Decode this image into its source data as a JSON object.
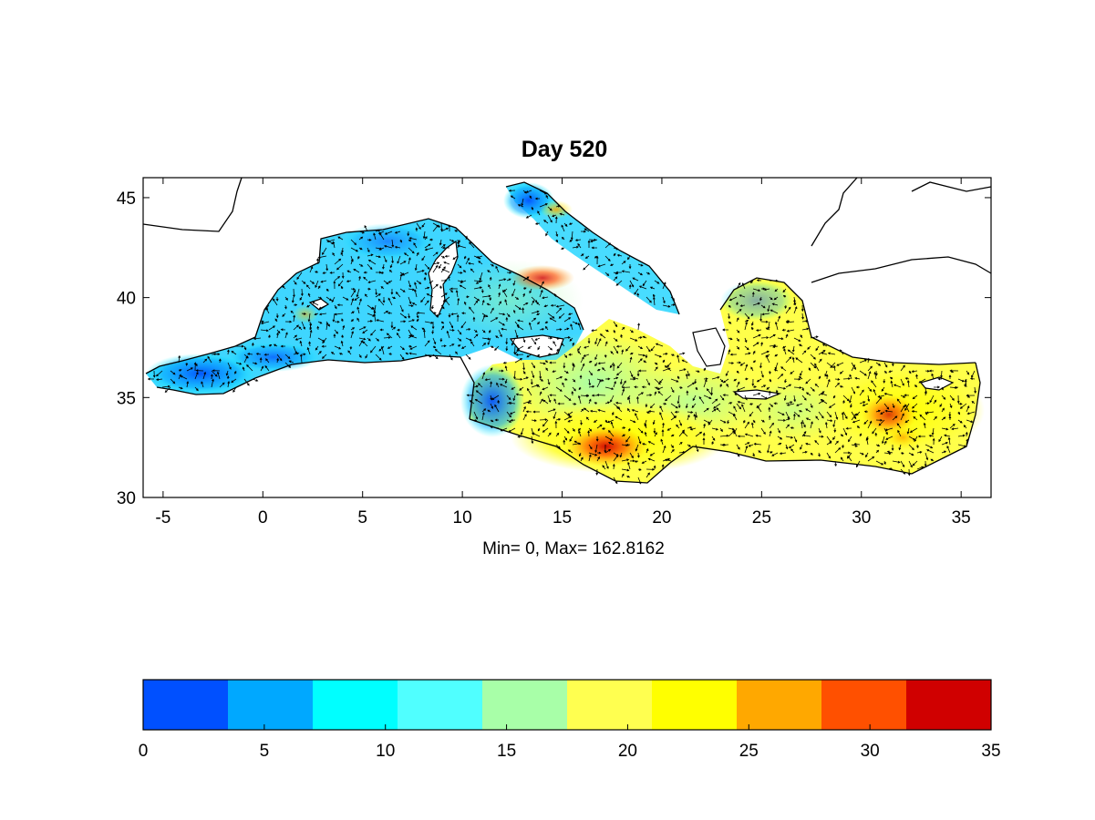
{
  "title": "Day  520",
  "stats_label": "Min= 0,  Max= 162.8162",
  "map": {
    "x_ticks": [
      -5,
      0,
      5,
      10,
      15,
      20,
      25,
      30,
      35
    ],
    "y_ticks": [
      30,
      35,
      40,
      45
    ],
    "x_range": [
      -6,
      36.5
    ],
    "y_range": [
      30,
      46
    ]
  },
  "colorbar": {
    "ticks": [
      0,
      5,
      10,
      15,
      20,
      25,
      30,
      35
    ],
    "range": [
      0,
      35
    ],
    "colors": [
      "#0050ff",
      "#00a8ff",
      "#00ffff",
      "#50ffff",
      "#a8ffa8",
      "#ffff50",
      "#ffff00",
      "#ffa800",
      "#ff5000",
      "#d00000"
    ]
  },
  "chart_data": {
    "type": "heatmap",
    "title": "Day  520",
    "xlabel": "",
    "ylabel": "",
    "xlim": [
      -6,
      36.5
    ],
    "ylim": [
      30,
      46
    ],
    "annotation": "Min= 0,  Max= 162.8162",
    "colorbar_range": [
      0,
      35
    ],
    "colorbar_levels": 10
  }
}
